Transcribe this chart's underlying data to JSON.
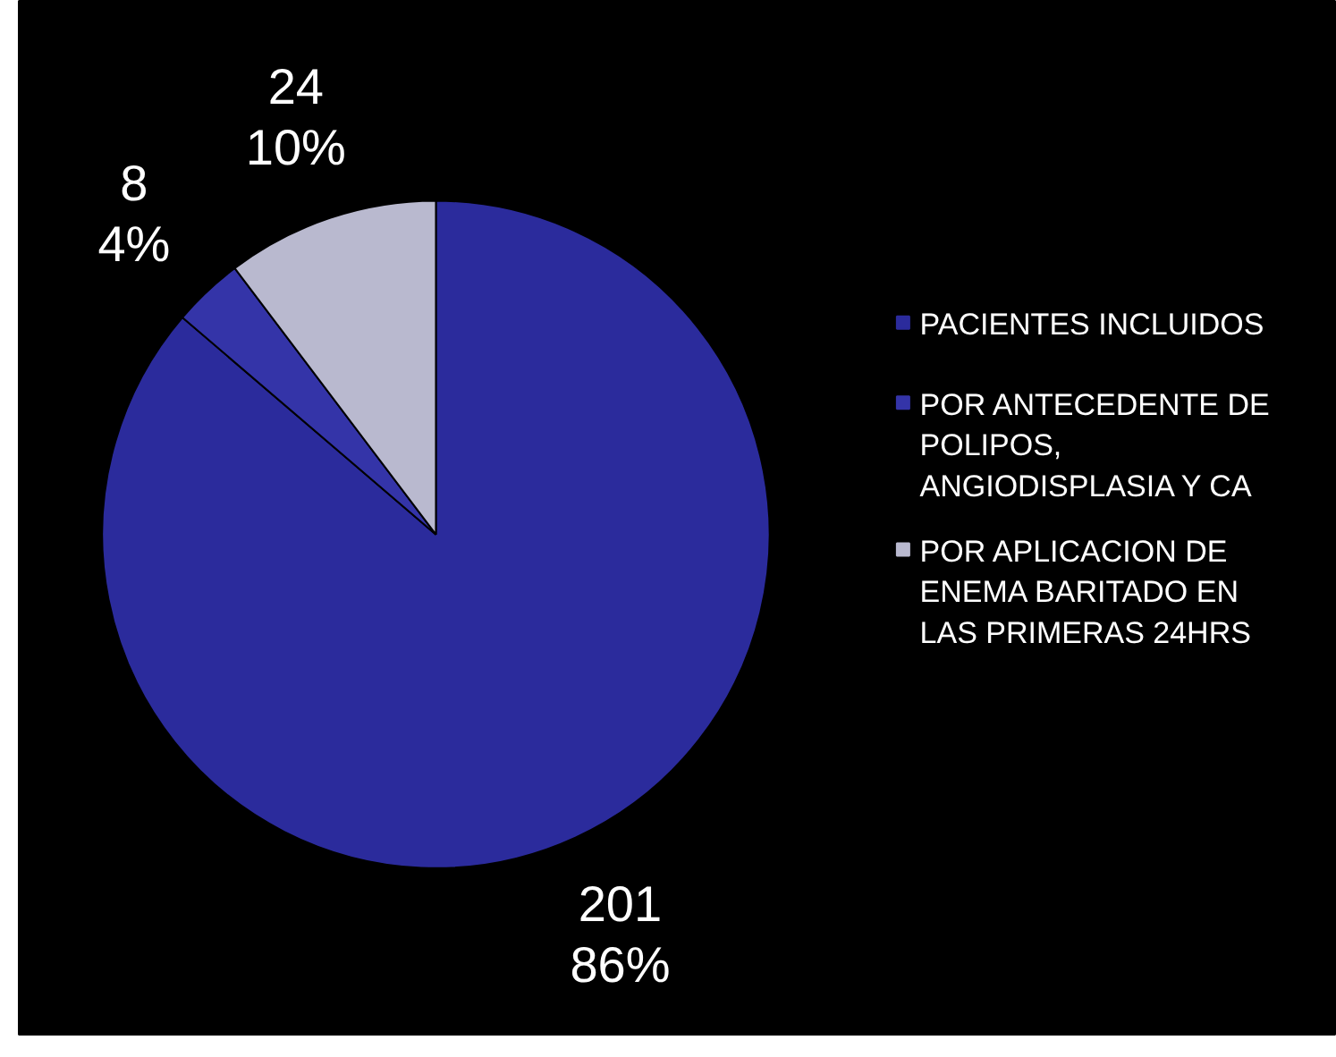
{
  "chart_data": {
    "type": "pie",
    "categories": [
      "PACIENTES INCLUIDOS",
      "POR ANTECEDENTE DE POLIPOS, ANGIODISPLASIA Y CA",
      "POR APLICACION DE ENEMA BARITADO EN LAS PRIMERAS 24HRS"
    ],
    "values": [
      201,
      8,
      24
    ],
    "colors": [
      "#2b2b9c",
      "#3434a8",
      "#b9b9cf"
    ],
    "value_labels": [
      "201\n86%",
      "8\n4%",
      "24\n10%"
    ],
    "legend": "right"
  }
}
